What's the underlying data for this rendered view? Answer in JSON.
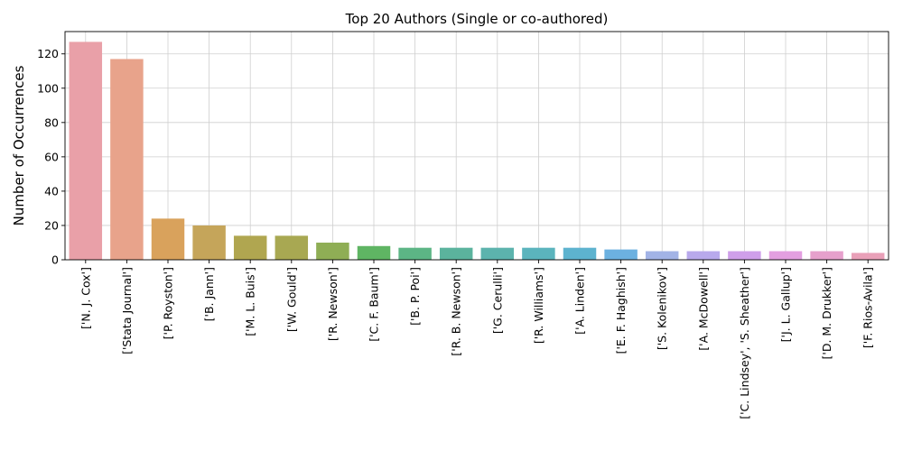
{
  "chart_data": {
    "type": "bar",
    "title": "Top 20 Authors (Single or co-authored)",
    "xlabel": "",
    "ylabel": "Number of Occurrences",
    "categories": [
      "['N. J. Cox']",
      "['Stata Journal']",
      "['P. Royston']",
      "['B. Jann']",
      "['M. L. Buis']",
      "['W. Gould']",
      "['R. Newson']",
      "['C. F. Baum']",
      "['B. P. Poi']",
      "['R. B. Newson']",
      "['G. Cerulli']",
      "['R. Williams']",
      "['A. Linden']",
      "['E. F. Haghish']",
      "['S. Kolenikov']",
      "['A. McDowell']",
      "['C. Lindsey', 'S. Sheather']",
      "['J. L. Gallup']",
      "['D. M. Drukker']",
      "['F. Rios-Avila']"
    ],
    "values": [
      127,
      117,
      24,
      20,
      14,
      14,
      10,
      8,
      7,
      7,
      7,
      7,
      7,
      6,
      5,
      5,
      5,
      5,
      5,
      4
    ],
    "colors": [
      "#e9a0a8",
      "#e8a38b",
      "#d9a25c",
      "#c5a55a",
      "#b0a650",
      "#a8a852",
      "#8fae55",
      "#5fb563",
      "#5cb585",
      "#5bb39d",
      "#5cb3ad",
      "#5bb4bd",
      "#5db3cf",
      "#6cb1e0",
      "#a2b3e6",
      "#b8a9ec",
      "#cf9fea",
      "#e39fe0",
      "#e6a0cc",
      "#e9a0b8"
    ],
    "ylim": [
      0,
      133
    ],
    "yticks": [
      0,
      20,
      40,
      60,
      80,
      100,
      120
    ],
    "grid": true,
    "legend": "none"
  }
}
